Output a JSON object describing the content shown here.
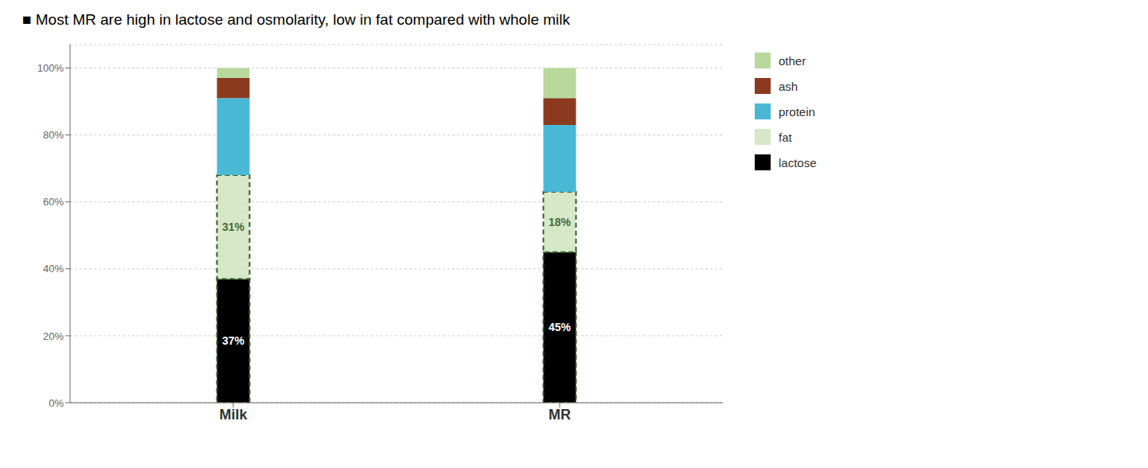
{
  "chart_data": {
    "type": "bar",
    "title": "■  Most MR are high in lactose and osmolarity, low in fat compared with whole milk",
    "categories": [
      "Milk",
      "MR"
    ],
    "series": [
      {
        "name": "lactose",
        "color": "#000000",
        "values": [
          37,
          45
        ],
        "value_labels": [
          "37%",
          "45%"
        ]
      },
      {
        "name": "fat",
        "color": "#d6e8c8",
        "values": [
          31,
          18
        ],
        "value_labels": [
          "31%",
          "18%"
        ]
      },
      {
        "name": "protein",
        "color": "#49b8d5",
        "values": [
          23,
          20
        ]
      },
      {
        "name": "ash",
        "color": "#8b3a1e",
        "values": [
          6,
          8
        ]
      },
      {
        "name": "other",
        "color": "#b8d89c",
        "values": [
          3,
          9
        ]
      }
    ],
    "stacked": true,
    "data_labels": true,
    "ylim": [
      0,
      107
    ],
    "yticks": [
      {
        "value": 0,
        "label": "0%"
      },
      {
        "value": 20,
        "label": "20%"
      },
      {
        "value": 40,
        "label": "40%"
      },
      {
        "value": 60,
        "label": "60%"
      },
      {
        "value": 80,
        "label": "80%"
      },
      {
        "value": 100,
        "label": "100%"
      }
    ],
    "grid": true,
    "legend": "right"
  }
}
